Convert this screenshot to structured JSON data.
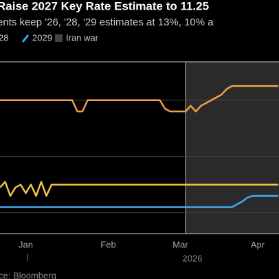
{
  "chart_data": {
    "type": "line",
    "title": "Raise 2027 Key Rate Estimate to 11.25",
    "subtitle": "ents keep '26, '28, '29 estimates at 13%, 10% a",
    "categories": [
      null,
      null,
      null,
      null,
      null,
      "Jan",
      null,
      null,
      null,
      null,
      null,
      null,
      null,
      null,
      null,
      null,
      null,
      null,
      null,
      null,
      null,
      "Feb",
      null,
      null,
      null,
      null,
      null,
      null,
      null,
      null,
      null,
      null,
      null,
      null,
      null,
      "Mar",
      null,
      null,
      null,
      null,
      null,
      null,
      null,
      null,
      null,
      null,
      null,
      null,
      null,
      null,
      "Apr",
      null,
      null,
      null,
      null
    ],
    "year_label": "2026",
    "series": [
      {
        "name": null,
        "color": "#f0a04b",
        "values": [
          11.0,
          11.0,
          11.0,
          11.0,
          11.0,
          11.0,
          11.0,
          11.0,
          11.0,
          11.0,
          11.0,
          11.0,
          11.0,
          11.0,
          11.0,
          10.8,
          10.8,
          11.0,
          11.0,
          11.0,
          11.0,
          11.0,
          11.0,
          11.0,
          11.0,
          11.0,
          11.0,
          11.0,
          11.0,
          11.0,
          11.0,
          11.0,
          10.85,
          10.8,
          10.8,
          10.8,
          10.8,
          10.9,
          10.8,
          10.9,
          10.95,
          11.0,
          11.05,
          11.1,
          11.2,
          11.25,
          11.25,
          11.25,
          11.25,
          11.25,
          11.25,
          11.25,
          11.25,
          11.25,
          11.25
        ]
      },
      {
        "name": "28",
        "color": "#f2c14e",
        "values": [
          9.45,
          9.55,
          9.3,
          9.45,
          9.5,
          9.35,
          9.5,
          9.3,
          9.55,
          9.3,
          9.5,
          9.5,
          9.5,
          9.5,
          9.5,
          9.5,
          9.5,
          9.5,
          9.5,
          9.5,
          9.5,
          9.5,
          9.5,
          9.5,
          9.5,
          9.5,
          9.5,
          9.5,
          9.5,
          9.5,
          9.5,
          9.5,
          9.5,
          9.5,
          9.5,
          9.5,
          9.5,
          9.5,
          9.5,
          9.5,
          9.5,
          9.5,
          9.5,
          9.5,
          9.5,
          9.5,
          9.5,
          9.5,
          9.5,
          9.5,
          9.5,
          9.5,
          9.5,
          9.5,
          9.5
        ]
      },
      {
        "name": "2029",
        "color": "#3fa9f5",
        "values": [
          9.1,
          9.1,
          9.1,
          9.1,
          9.1,
          9.1,
          9.1,
          9.1,
          9.1,
          9.1,
          9.1,
          9.1,
          9.1,
          9.1,
          9.1,
          9.1,
          9.1,
          9.1,
          9.1,
          9.1,
          9.1,
          9.1,
          9.1,
          9.1,
          9.1,
          9.1,
          9.1,
          9.1,
          9.1,
          9.1,
          9.1,
          9.1,
          9.1,
          9.1,
          9.1,
          9.1,
          9.1,
          9.1,
          9.1,
          9.1,
          9.1,
          9.1,
          9.1,
          9.1,
          9.1,
          9.1,
          9.15,
          9.2,
          9.27,
          9.3,
          9.3,
          9.3,
          9.3,
          9.3,
          9.3
        ]
      }
    ],
    "shade": {
      "name": "Iran war",
      "color": "#2a2a2a",
      "start_index": 36
    },
    "ylim": [
      8.63,
      11.68
    ],
    "ygrid": [
      9,
      10,
      11
    ],
    "source": "ce: Bloomberg"
  }
}
